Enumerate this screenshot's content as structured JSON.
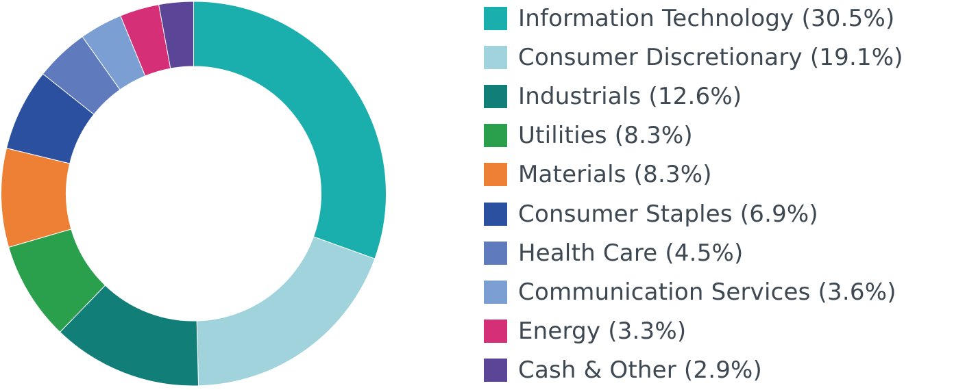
{
  "chart_data": {
    "type": "pie",
    "style": "donut",
    "title": "",
    "legend_position": "right",
    "slices": [
      {
        "label": "Information Technology (30.5%)",
        "value": 30.5,
        "color": "#1aafad"
      },
      {
        "label": "Consumer Discretionary (19.1%)",
        "value": 19.1,
        "color": "#a0d3dc"
      },
      {
        "label": "Industrials (12.6%)",
        "value": 12.6,
        "color": "#127e78"
      },
      {
        "label": "Utilities (8.3%)",
        "value": 8.3,
        "color": "#2aa04d"
      },
      {
        "label": "Materials (8.3%)",
        "value": 8.3,
        "color": "#ed8035"
      },
      {
        "label": "Consumer Staples (6.9%)",
        "value": 6.9,
        "color": "#2c50a0"
      },
      {
        "label": "Health Care (4.5%)",
        "value": 4.5,
        "color": "#5f7bbd"
      },
      {
        "label": "Communication Services (3.6%)",
        "value": 3.6,
        "color": "#7b9fd3"
      },
      {
        "label": "Energy (3.3%)",
        "value": 3.3,
        "color": "#d52f77"
      },
      {
        "label": "Cash & Other (2.9%)",
        "value": 2.9,
        "color": "#5a4597"
      }
    ]
  }
}
